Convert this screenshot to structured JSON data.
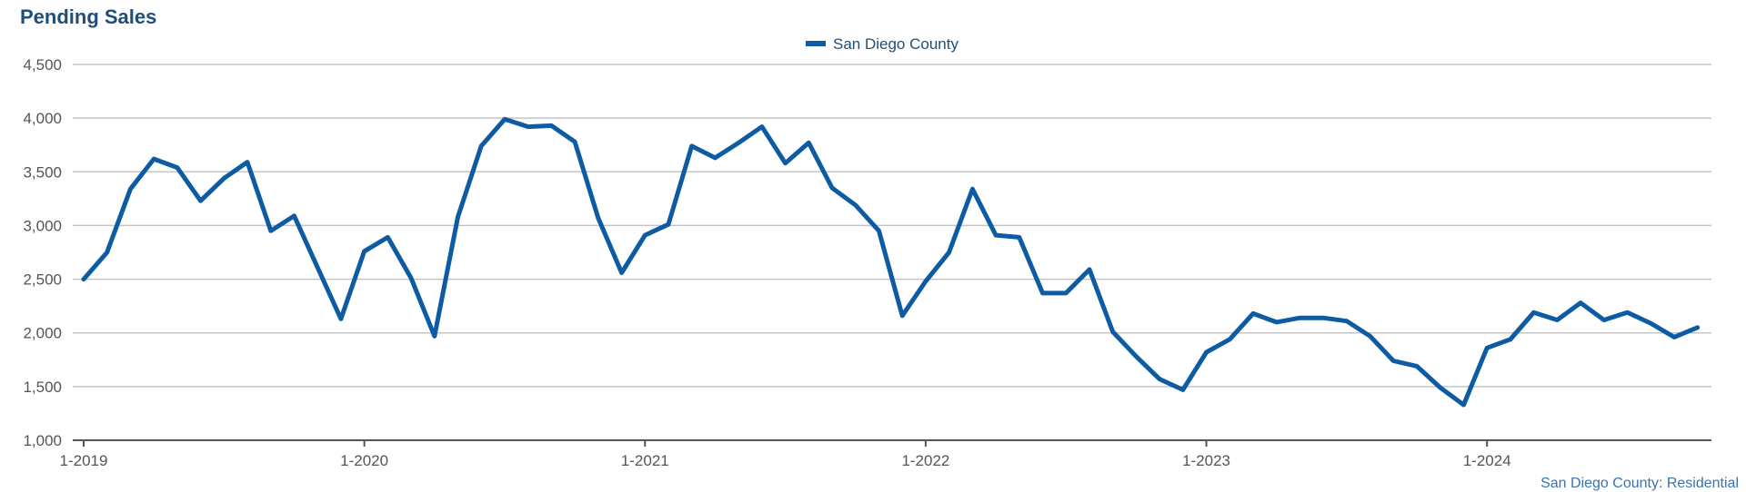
{
  "chart_data": {
    "type": "line",
    "title": "Pending Sales",
    "source": "San Diego County: Residential",
    "legend": "top-center",
    "grid": true,
    "ylim": [
      1000,
      4500
    ],
    "yticks": [
      "1,000",
      "1,500",
      "2,000",
      "2,500",
      "3,000",
      "3,500",
      "4,000",
      "4,500"
    ],
    "xticks": [
      "1-2019",
      "1-2020",
      "1-2021",
      "1-2022",
      "1-2023",
      "1-2024"
    ],
    "x_start": "1-2019",
    "x_end": "10-2024",
    "series": [
      {
        "name": "San Diego County",
        "color": "#0d5ba3",
        "values": [
          2500,
          2750,
          3340,
          3620,
          3540,
          3230,
          3440,
          3590,
          2950,
          3090,
          2610,
          2130,
          2760,
          2890,
          2510,
          1970,
          3080,
          3740,
          3990,
          3920,
          3930,
          3780,
          3070,
          2560,
          2910,
          3010,
          3740,
          3630,
          3770,
          3920,
          3580,
          3770,
          3350,
          3190,
          2950,
          2160,
          2480,
          2750,
          3340,
          2910,
          2890,
          2370,
          2370,
          2590,
          2010,
          1780,
          1570,
          1470,
          1820,
          1940,
          2180,
          2100,
          2140,
          2140,
          2110,
          1970,
          1740,
          1690,
          1490,
          1330,
          1860,
          1940,
          2190,
          2120,
          2280,
          2120,
          2190,
          2090,
          1960,
          2050
        ]
      }
    ]
  }
}
